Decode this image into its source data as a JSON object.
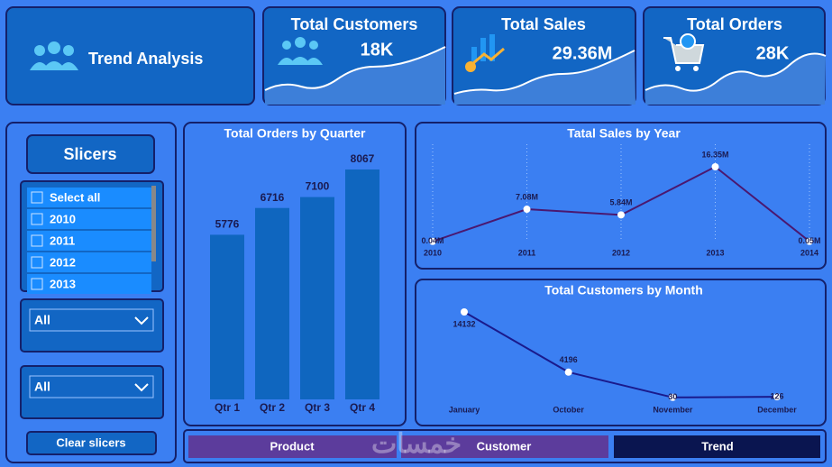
{
  "title": "Trend Analysis",
  "kpis": [
    {
      "label": "Total Customers",
      "value": "18K"
    },
    {
      "label": "Total Sales",
      "value": "29.36M"
    },
    {
      "label": "Total Orders",
      "value": "28K"
    }
  ],
  "slicers": {
    "title": "Slicers",
    "options": [
      "Select all",
      "2010",
      "2011",
      "2012",
      "2013"
    ],
    "dropdowns": [
      "All",
      "All"
    ],
    "clear": "Clear slicers"
  },
  "tabs": [
    "Product",
    "Customer",
    "Trend"
  ],
  "watermark": "خمسات",
  "chart_data": [
    {
      "type": "bar",
      "title": "Total Orders by Quarter",
      "categories": [
        "Qtr 1",
        "Qtr 2",
        "Qtr 3",
        "Qtr 4"
      ],
      "values": [
        5776,
        6716,
        7100,
        8067
      ],
      "color": "#0f66bf"
    },
    {
      "type": "line",
      "title": "Tatal Sales by Year",
      "categories": [
        "2010",
        "2011",
        "2012",
        "2013",
        "2014"
      ],
      "values": [
        0.04,
        7.08,
        5.84,
        16.35,
        0.05
      ],
      "value_labels": [
        "0.04M",
        "7.08M",
        "5.84M",
        "16.35M",
        "0.05M"
      ],
      "color": "#4a1870",
      "grid": true
    },
    {
      "type": "line",
      "title": "Total Customers by Month",
      "categories": [
        "January",
        "October",
        "November",
        "December"
      ],
      "values": [
        14132,
        4196,
        30,
        126
      ],
      "color": "#1a1a8c"
    }
  ]
}
